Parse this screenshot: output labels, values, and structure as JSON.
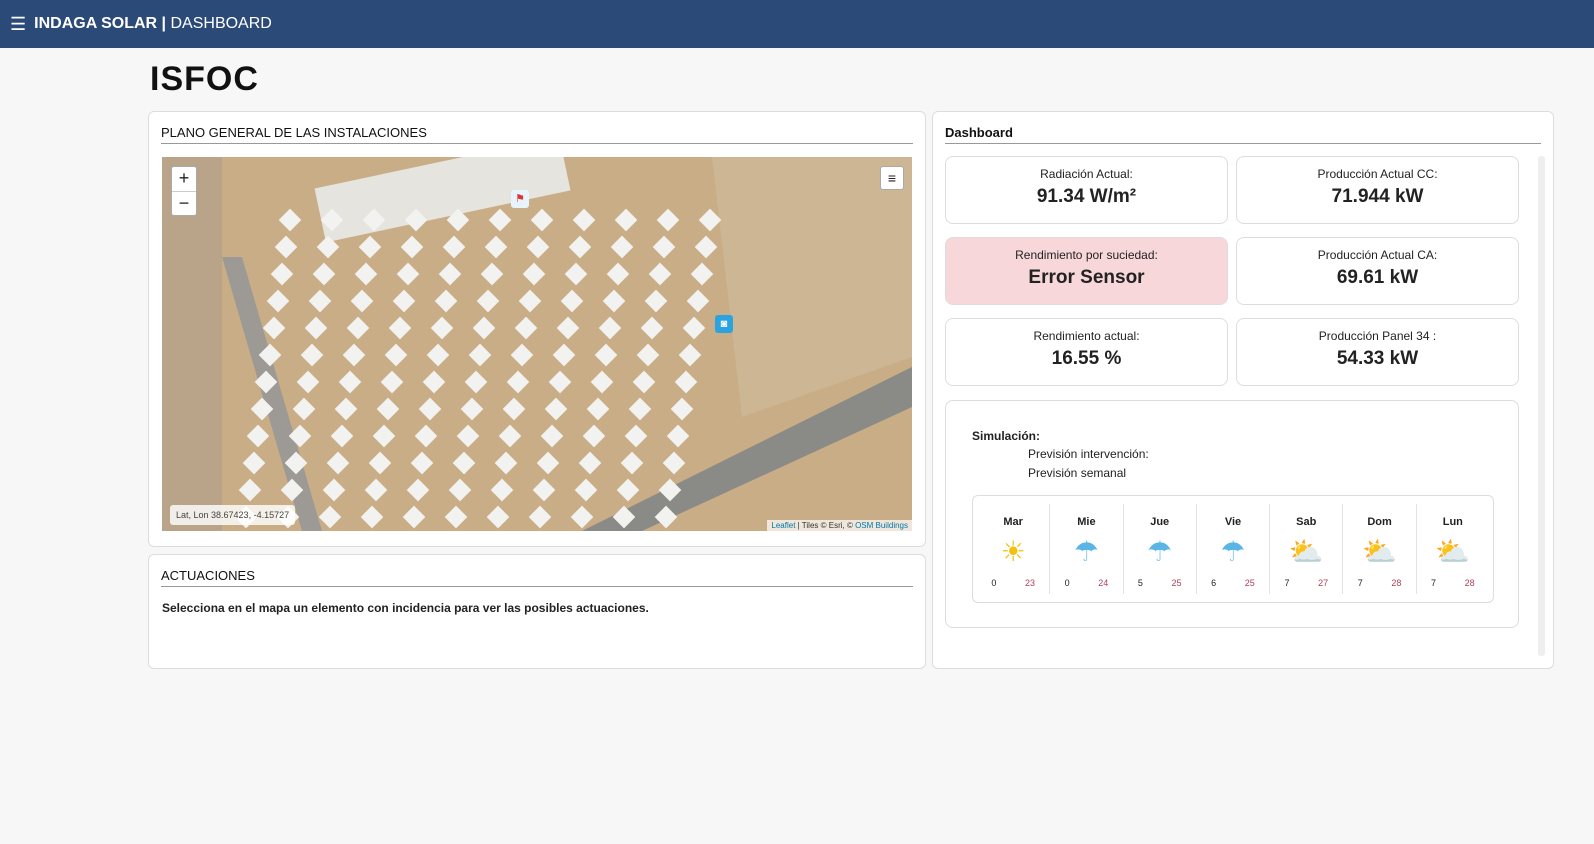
{
  "topbar": {
    "menu_icon": "hamburger-icon",
    "brand": "INDAGA SOLAR",
    "separator": " | ",
    "section": "DASHBOARD"
  },
  "page_title": "ISFOC",
  "map_panel": {
    "title": "PLANO GENERAL DE LAS INSTALACIONES",
    "zoom_in": "+",
    "zoom_out": "−",
    "coords": "Lat, Lon  38.67423, -4.15727",
    "attribution_leaflet": "Leaflet",
    "attribution_tiles": " | Tiles © Esri, © ",
    "attribution_osm": "OSM Buildings"
  },
  "actuaciones": {
    "title": "ACTUACIONES",
    "text": "Selecciona en el mapa un elemento con incidencia para ver las posibles actuaciones."
  },
  "dashboard": {
    "title": "Dashboard",
    "stats": [
      {
        "label": "Radiación Actual:",
        "value": "91.34 W/m²"
      },
      {
        "label": "Producción Actual CC:",
        "value": "71.944 kW"
      },
      {
        "label": "Rendimiento por suciedad:",
        "value": "Error Sensor",
        "status": "error"
      },
      {
        "label": "Producción Actual CA:",
        "value": "69.61 kW"
      },
      {
        "label": "Rendimiento actual:",
        "value": "16.55 %"
      },
      {
        "label": "Producción Panel 34 :",
        "value": "54.33 kW"
      }
    ],
    "error_color": "#f8d7da",
    "simulation": {
      "title": "Simulación:",
      "line1": "Previsión intervención:",
      "line2": "Previsión semanal"
    },
    "forecast": [
      {
        "day": "Mar",
        "icon": "sun-icon",
        "min": "0",
        "max": "23"
      },
      {
        "day": "Mie",
        "icon": "rain-cloud-icon",
        "min": "0",
        "max": "24"
      },
      {
        "day": "Jue",
        "icon": "rain-cloud-icon",
        "min": "5",
        "max": "25"
      },
      {
        "day": "Vie",
        "icon": "rain-cloud-icon",
        "min": "6",
        "max": "25"
      },
      {
        "day": "Sab",
        "icon": "partly-cloudy-icon",
        "min": "7",
        "max": "27"
      },
      {
        "day": "Dom",
        "icon": "partly-cloudy-icon",
        "min": "7",
        "max": "28"
      },
      {
        "day": "Lun",
        "icon": "partly-cloudy-icon",
        "min": "7",
        "max": "28"
      }
    ]
  }
}
